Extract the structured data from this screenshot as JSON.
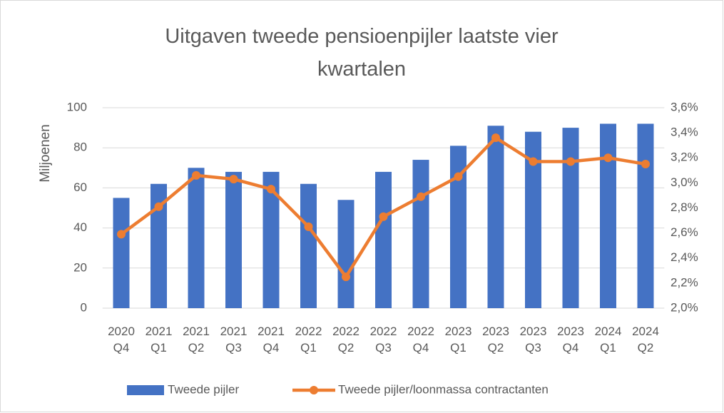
{
  "chart_data": {
    "type": "bar",
    "title": "Uitgaven tweede pensioenpijler laatste vier kwartalen",
    "y_label": "Miljoenen",
    "categories": [
      "2020 Q4",
      "2021 Q1",
      "2021 Q2",
      "2021 Q3",
      "2021 Q4",
      "2022 Q1",
      "2022 Q2",
      "2022 Q3",
      "2022 Q4",
      "2023 Q1",
      "2023 Q2",
      "2023 Q3",
      "2023 Q4",
      "2024 Q1",
      "2024 Q2"
    ],
    "series": [
      {
        "name": "Tweede pijler",
        "type": "bar",
        "color": "#4472c4",
        "values": [
          55,
          62,
          70,
          68,
          68,
          62,
          54,
          68,
          74,
          81,
          91,
          88,
          90,
          92,
          92
        ]
      },
      {
        "name": "Tweede pijler/loonmassa contractanten",
        "type": "line",
        "color": "#ed7d31",
        "axis": "y2",
        "values": [
          2.59,
          2.81,
          3.06,
          3.03,
          2.95,
          2.65,
          2.25,
          2.73,
          2.89,
          3.05,
          3.36,
          3.17,
          3.17,
          3.2,
          3.15
        ]
      }
    ],
    "ylim": [
      0,
      100
    ],
    "yticks": [
      0,
      20,
      40,
      60,
      80,
      100
    ],
    "y2lim": [
      2.0,
      3.6
    ],
    "y2ticks": [
      {
        "value": 2.0,
        "label": "2,0%"
      },
      {
        "value": 2.2,
        "label": "2,2%"
      },
      {
        "value": 2.4,
        "label": "2,4%"
      },
      {
        "value": 2.6,
        "label": "2,6%"
      },
      {
        "value": 2.8,
        "label": "2,8%"
      },
      {
        "value": 3.0,
        "label": "3,0%"
      },
      {
        "value": 3.2,
        "label": "3,2%"
      },
      {
        "value": 3.4,
        "label": "3,4%"
      },
      {
        "value": 3.6,
        "label": "3,6%"
      }
    ],
    "grid": true,
    "legend": "bottom"
  }
}
